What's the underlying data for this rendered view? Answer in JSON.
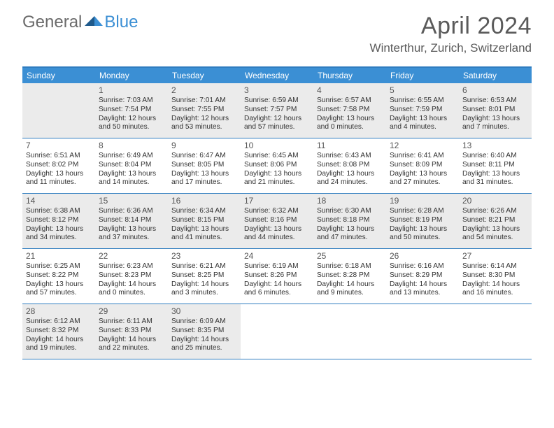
{
  "logo": {
    "text1": "General",
    "text2": "Blue"
  },
  "title": "April 2024",
  "location": "Winterthur, Zurich, Switzerland",
  "colors": {
    "header_bg": "#3b8fd4",
    "border": "#2f7dc0",
    "gray_cell": "#ebebeb",
    "text": "#333333",
    "title_text": "#5a5a5a"
  },
  "dayNames": [
    "Sunday",
    "Monday",
    "Tuesday",
    "Wednesday",
    "Thursday",
    "Friday",
    "Saturday"
  ],
  "weeks": [
    [
      {
        "num": "",
        "lines": [],
        "shade": "gray"
      },
      {
        "num": "1",
        "lines": [
          "Sunrise: 7:03 AM",
          "Sunset: 7:54 PM",
          "Daylight: 12 hours and 50 minutes."
        ],
        "shade": "gray"
      },
      {
        "num": "2",
        "lines": [
          "Sunrise: 7:01 AM",
          "Sunset: 7:55 PM",
          "Daylight: 12 hours and 53 minutes."
        ],
        "shade": "gray"
      },
      {
        "num": "3",
        "lines": [
          "Sunrise: 6:59 AM",
          "Sunset: 7:57 PM",
          "Daylight: 12 hours and 57 minutes."
        ],
        "shade": "gray"
      },
      {
        "num": "4",
        "lines": [
          "Sunrise: 6:57 AM",
          "Sunset: 7:58 PM",
          "Daylight: 13 hours and 0 minutes."
        ],
        "shade": "gray"
      },
      {
        "num": "5",
        "lines": [
          "Sunrise: 6:55 AM",
          "Sunset: 7:59 PM",
          "Daylight: 13 hours and 4 minutes."
        ],
        "shade": "gray"
      },
      {
        "num": "6",
        "lines": [
          "Sunrise: 6:53 AM",
          "Sunset: 8:01 PM",
          "Daylight: 13 hours and 7 minutes."
        ],
        "shade": "gray"
      }
    ],
    [
      {
        "num": "7",
        "lines": [
          "Sunrise: 6:51 AM",
          "Sunset: 8:02 PM",
          "Daylight: 13 hours and 11 minutes."
        ],
        "shade": "white"
      },
      {
        "num": "8",
        "lines": [
          "Sunrise: 6:49 AM",
          "Sunset: 8:04 PM",
          "Daylight: 13 hours and 14 minutes."
        ],
        "shade": "white"
      },
      {
        "num": "9",
        "lines": [
          "Sunrise: 6:47 AM",
          "Sunset: 8:05 PM",
          "Daylight: 13 hours and 17 minutes."
        ],
        "shade": "white"
      },
      {
        "num": "10",
        "lines": [
          "Sunrise: 6:45 AM",
          "Sunset: 8:06 PM",
          "Daylight: 13 hours and 21 minutes."
        ],
        "shade": "white"
      },
      {
        "num": "11",
        "lines": [
          "Sunrise: 6:43 AM",
          "Sunset: 8:08 PM",
          "Daylight: 13 hours and 24 minutes."
        ],
        "shade": "white"
      },
      {
        "num": "12",
        "lines": [
          "Sunrise: 6:41 AM",
          "Sunset: 8:09 PM",
          "Daylight: 13 hours and 27 minutes."
        ],
        "shade": "white"
      },
      {
        "num": "13",
        "lines": [
          "Sunrise: 6:40 AM",
          "Sunset: 8:11 PM",
          "Daylight: 13 hours and 31 minutes."
        ],
        "shade": "white"
      }
    ],
    [
      {
        "num": "14",
        "lines": [
          "Sunrise: 6:38 AM",
          "Sunset: 8:12 PM",
          "Daylight: 13 hours and 34 minutes."
        ],
        "shade": "gray"
      },
      {
        "num": "15",
        "lines": [
          "Sunrise: 6:36 AM",
          "Sunset: 8:14 PM",
          "Daylight: 13 hours and 37 minutes."
        ],
        "shade": "gray"
      },
      {
        "num": "16",
        "lines": [
          "Sunrise: 6:34 AM",
          "Sunset: 8:15 PM",
          "Daylight: 13 hours and 41 minutes."
        ],
        "shade": "gray"
      },
      {
        "num": "17",
        "lines": [
          "Sunrise: 6:32 AM",
          "Sunset: 8:16 PM",
          "Daylight: 13 hours and 44 minutes."
        ],
        "shade": "gray"
      },
      {
        "num": "18",
        "lines": [
          "Sunrise: 6:30 AM",
          "Sunset: 8:18 PM",
          "Daylight: 13 hours and 47 minutes."
        ],
        "shade": "gray"
      },
      {
        "num": "19",
        "lines": [
          "Sunrise: 6:28 AM",
          "Sunset: 8:19 PM",
          "Daylight: 13 hours and 50 minutes."
        ],
        "shade": "gray"
      },
      {
        "num": "20",
        "lines": [
          "Sunrise: 6:26 AM",
          "Sunset: 8:21 PM",
          "Daylight: 13 hours and 54 minutes."
        ],
        "shade": "gray"
      }
    ],
    [
      {
        "num": "21",
        "lines": [
          "Sunrise: 6:25 AM",
          "Sunset: 8:22 PM",
          "Daylight: 13 hours and 57 minutes."
        ],
        "shade": "white"
      },
      {
        "num": "22",
        "lines": [
          "Sunrise: 6:23 AM",
          "Sunset: 8:23 PM",
          "Daylight: 14 hours and 0 minutes."
        ],
        "shade": "white"
      },
      {
        "num": "23",
        "lines": [
          "Sunrise: 6:21 AM",
          "Sunset: 8:25 PM",
          "Daylight: 14 hours and 3 minutes."
        ],
        "shade": "white"
      },
      {
        "num": "24",
        "lines": [
          "Sunrise: 6:19 AM",
          "Sunset: 8:26 PM",
          "Daylight: 14 hours and 6 minutes."
        ],
        "shade": "white"
      },
      {
        "num": "25",
        "lines": [
          "Sunrise: 6:18 AM",
          "Sunset: 8:28 PM",
          "Daylight: 14 hours and 9 minutes."
        ],
        "shade": "white"
      },
      {
        "num": "26",
        "lines": [
          "Sunrise: 6:16 AM",
          "Sunset: 8:29 PM",
          "Daylight: 14 hours and 13 minutes."
        ],
        "shade": "white"
      },
      {
        "num": "27",
        "lines": [
          "Sunrise: 6:14 AM",
          "Sunset: 8:30 PM",
          "Daylight: 14 hours and 16 minutes."
        ],
        "shade": "white"
      }
    ],
    [
      {
        "num": "28",
        "lines": [
          "Sunrise: 6:12 AM",
          "Sunset: 8:32 PM",
          "Daylight: 14 hours and 19 minutes."
        ],
        "shade": "gray"
      },
      {
        "num": "29",
        "lines": [
          "Sunrise: 6:11 AM",
          "Sunset: 8:33 PM",
          "Daylight: 14 hours and 22 minutes."
        ],
        "shade": "gray"
      },
      {
        "num": "30",
        "lines": [
          "Sunrise: 6:09 AM",
          "Sunset: 8:35 PM",
          "Daylight: 14 hours and 25 minutes."
        ],
        "shade": "gray"
      },
      {
        "num": "",
        "lines": [],
        "shade": "white"
      },
      {
        "num": "",
        "lines": [],
        "shade": "white"
      },
      {
        "num": "",
        "lines": [],
        "shade": "white"
      },
      {
        "num": "",
        "lines": [],
        "shade": "white"
      }
    ]
  ]
}
